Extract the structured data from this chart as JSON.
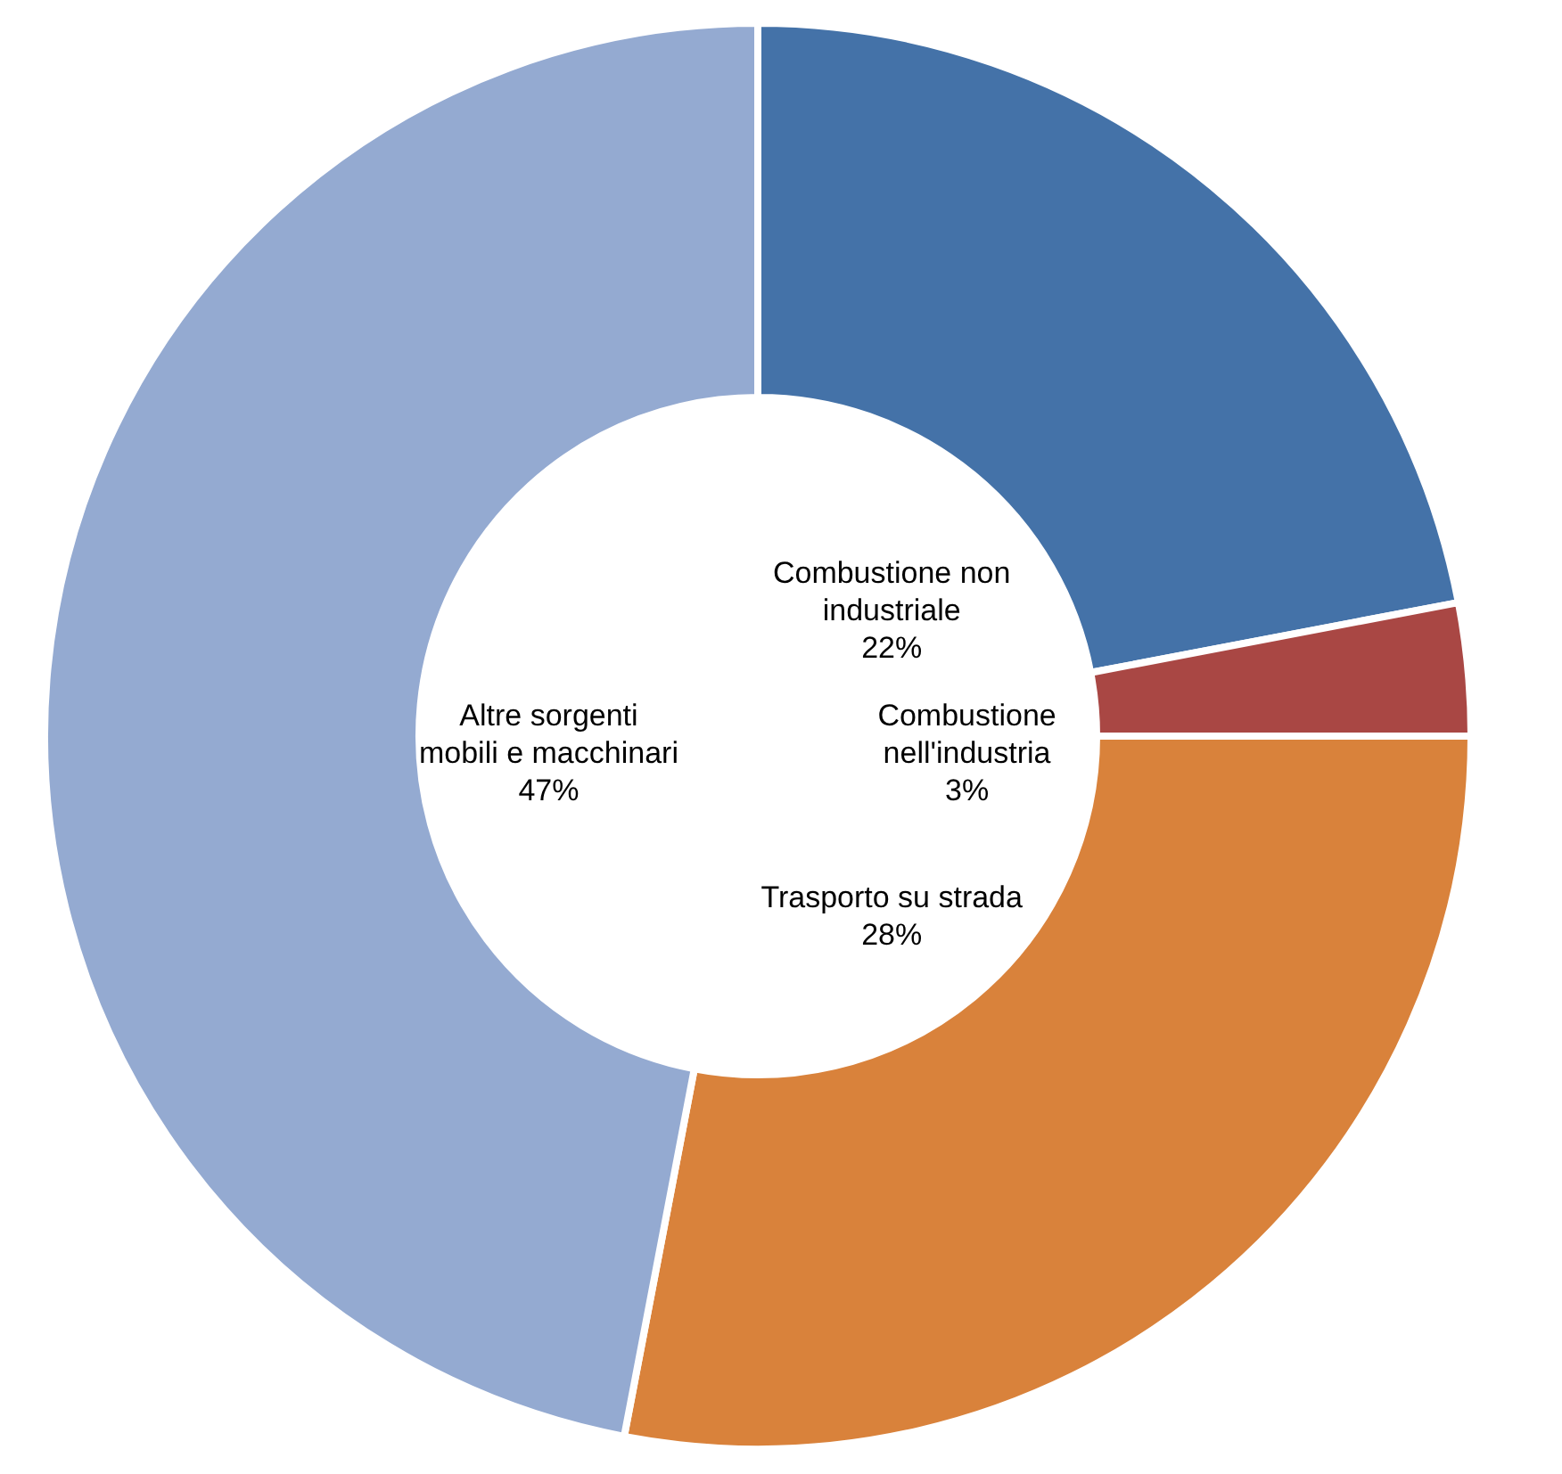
{
  "chart_data": {
    "type": "donut",
    "categories": [
      "Combustione non industriale",
      "Combustione nell'industria",
      "Trasporto su strada",
      "Altre sorgenti mobili e macchinari"
    ],
    "values": [
      22,
      3,
      28,
      47
    ],
    "value_labels": [
      "22%",
      "3%",
      "28%",
      "47%"
    ],
    "colors": [
      "#4472a8",
      "#a94744",
      "#d9823b",
      "#94aad1"
    ],
    "legend": false
  }
}
